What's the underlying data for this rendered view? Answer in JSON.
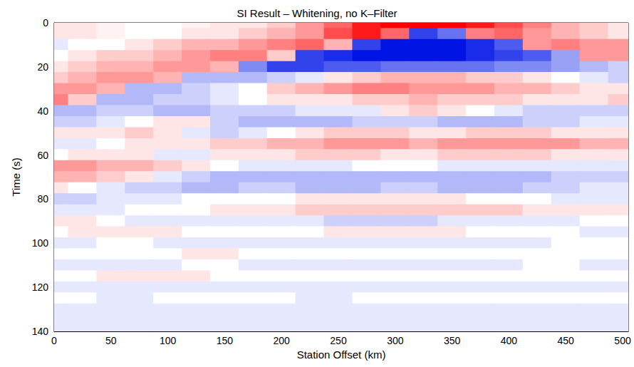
{
  "chart_data": {
    "type": "heatmap",
    "title": "SI Result – Whitening, no K–Filter",
    "xlabel": "Station Offset (km)",
    "ylabel": "Time (s)",
    "xlim": [
      0,
      505
    ],
    "xticks": [
      0,
      50,
      100,
      150,
      200,
      250,
      300,
      350,
      400,
      450,
      500
    ],
    "ylim": [
      0,
      140
    ],
    "yticks": [
      0,
      20,
      40,
      60,
      80,
      100,
      120,
      140
    ],
    "y_inverted": true,
    "zlim": [
      -1,
      1
    ],
    "x": [
      0,
      25,
      50,
      75,
      100,
      125,
      150,
      175,
      200,
      225,
      250,
      275,
      300,
      325,
      350,
      375,
      400,
      425,
      450,
      475,
      500
    ],
    "y": [
      0,
      5,
      10,
      15,
      20,
      25,
      30,
      35,
      40,
      45,
      50,
      55,
      60,
      65,
      70,
      75,
      80,
      85,
      90,
      95,
      100,
      105,
      110,
      115,
      120,
      125,
      130,
      135,
      140
    ],
    "cells": [
      [
        0.1,
        0.1,
        0.05,
        0,
        0,
        0.05,
        0.1,
        0.1,
        0.2,
        0.4,
        0.6,
        0.9,
        1.0,
        1.0,
        1.0,
        0.9,
        0.7,
        0.5,
        0.3,
        0.2,
        0.1
      ],
      [
        0.1,
        0.1,
        0.05,
        0,
        0,
        0.1,
        0.1,
        0.2,
        0.3,
        0.4,
        0.7,
        0.9,
        0.6,
        -0.8,
        -0.6,
        0.5,
        0.6,
        0.4,
        0.3,
        0.2,
        0.1
      ],
      [
        -0.1,
        0,
        0,
        0.1,
        0.2,
        0.3,
        0.3,
        0.4,
        0.5,
        0.6,
        0.3,
        -0.8,
        -1,
        -1,
        -1,
        -0.9,
        -0.7,
        0.4,
        0.5,
        0.4,
        0.4
      ],
      [
        0,
        0.1,
        0.2,
        0.2,
        0.3,
        0.4,
        0.5,
        0.5,
        0.2,
        -0.8,
        -0.9,
        -1,
        -1,
        -1,
        -1,
        -0.9,
        -0.8,
        -0.7,
        -0.4,
        0.4,
        0.4
      ],
      [
        0.1,
        0.2,
        0.3,
        0.3,
        0.4,
        0.4,
        0.3,
        -0.5,
        -0.8,
        -0.8,
        -0.7,
        -0.7,
        -0.6,
        -0.6,
        -0.6,
        -0.6,
        -0.5,
        -0.5,
        -0.4,
        -0.3,
        -0.2
      ],
      [
        0.2,
        0.3,
        0.4,
        0.4,
        0.3,
        -0.3,
        -0.3,
        -0.3,
        -0.2,
        -0.1,
        0.1,
        0.2,
        0.3,
        0.3,
        0.3,
        0.2,
        0.2,
        0.1,
        0,
        -0.1,
        -0.2
      ],
      [
        0.4,
        0.4,
        0.3,
        -0.3,
        -0.3,
        -0.2,
        -0.1,
        0,
        0.2,
        0.3,
        0.4,
        0.5,
        0.5,
        0.4,
        0.4,
        0.4,
        0.3,
        0.3,
        0.2,
        0.1,
        0.1
      ],
      [
        0.5,
        0.2,
        -0.3,
        -0.3,
        -0.2,
        -0.2,
        -0.1,
        0,
        0.1,
        0.1,
        0.1,
        0.2,
        0.2,
        0.3,
        0.2,
        0.2,
        0.2,
        0.1,
        0.1,
        0.1,
        0.2
      ],
      [
        -0.3,
        -0.3,
        -0.2,
        -0.2,
        -0.3,
        -0.3,
        -0.2,
        -0.2,
        -0.2,
        -0.1,
        -0.1,
        -0.1,
        0.1,
        0.2,
        0.1,
        0,
        -0.1,
        -0.2,
        -0.2,
        -0.2,
        -0.2
      ],
      [
        -0.2,
        -0.2,
        -0.1,
        0,
        0.1,
        0.1,
        -0.2,
        -0.3,
        -0.3,
        -0.3,
        -0.3,
        -0.2,
        -0.2,
        -0.2,
        -0.3,
        -0.3,
        -0.3,
        -0.2,
        -0.2,
        -0.1,
        -0.1
      ],
      [
        0.1,
        0.1,
        0.1,
        0.2,
        0.1,
        -0.1,
        -0.2,
        -0.1,
        0,
        0.1,
        0.2,
        0.2,
        0.2,
        0.1,
        0.1,
        0.2,
        0.2,
        0.2,
        0.1,
        0.1,
        0.1
      ],
      [
        -0.1,
        -0.1,
        0,
        0.1,
        0.1,
        0.1,
        0.2,
        0.2,
        0.3,
        0.3,
        0.4,
        0.4,
        0.4,
        0.3,
        0.4,
        0.4,
        0.4,
        0.4,
        0.4,
        0.3,
        0.3
      ],
      [
        0,
        0.1,
        0.1,
        0.1,
        -0.1,
        -0.1,
        0.1,
        0.1,
        0.1,
        0.2,
        0.2,
        0.2,
        0.1,
        0.1,
        0.2,
        0.2,
        0.2,
        0.2,
        0.1,
        0.1,
        0.1
      ],
      [
        0.4,
        0.4,
        0.3,
        0.3,
        0.2,
        0.1,
        0,
        -0.1,
        -0.1,
        -0.1,
        -0.1,
        0,
        0,
        0,
        -0.1,
        -0.1,
        -0.1,
        -0.1,
        -0.1,
        -0.1,
        -0.1
      ],
      [
        0.3,
        0.3,
        0.2,
        0.1,
        -0.1,
        -0.2,
        -0.3,
        -0.3,
        -0.3,
        -0.3,
        -0.3,
        -0.3,
        -0.3,
        -0.3,
        -0.3,
        -0.3,
        -0.3,
        -0.3,
        -0.2,
        -0.2,
        -0.2
      ],
      [
        0.1,
        0,
        -0.1,
        -0.2,
        -0.2,
        -0.3,
        -0.3,
        -0.2,
        -0.2,
        -0.3,
        -0.3,
        -0.3,
        -0.2,
        -0.2,
        -0.3,
        -0.3,
        -0.3,
        -0.2,
        -0.2,
        -0.1,
        -0.1
      ],
      [
        -0.2,
        -0.2,
        -0.1,
        -0.1,
        -0.1,
        0,
        0,
        0,
        0,
        0.1,
        0.1,
        0.1,
        0.1,
        0.1,
        0.1,
        0,
        0,
        0,
        -0.1,
        -0.1,
        -0.1
      ],
      [
        -0.1,
        -0.1,
        -0.1,
        0,
        0,
        0,
        0.1,
        0.1,
        0.1,
        0.2,
        0.2,
        0.2,
        0.2,
        0.2,
        0.2,
        0.2,
        0.2,
        0.1,
        0.1,
        0.1,
        0.1
      ],
      [
        0.1,
        0.1,
        0,
        -0.1,
        -0.1,
        -0.1,
        -0.1,
        -0.1,
        -0.1,
        -0.1,
        -0.2,
        -0.2,
        -0.2,
        -0.2,
        -0.1,
        -0.1,
        -0.1,
        -0.1,
        -0.1,
        0,
        0
      ],
      [
        0,
        0.1,
        0.1,
        0.1,
        0.1,
        0,
        0,
        0,
        0,
        0,
        0.1,
        0.1,
        0.1,
        0.1,
        0.1,
        0,
        0,
        0,
        0,
        -0.1,
        -0.1
      ],
      [
        -0.1,
        -0.1,
        0,
        0,
        -0.1,
        -0.1,
        -0.1,
        -0.1,
        -0.1,
        -0.1,
        -0.1,
        -0.1,
        -0.1,
        -0.1,
        -0.1,
        -0.1,
        -0.1,
        -0.1,
        0,
        0,
        0
      ],
      [
        0,
        0,
        0,
        0,
        0,
        0.1,
        0.1,
        0,
        0,
        0,
        0,
        0,
        0,
        0,
        0,
        0,
        0,
        0,
        0,
        0,
        0
      ],
      [
        -0.1,
        -0.1,
        -0.1,
        -0.1,
        -0.1,
        0,
        0,
        -0.1,
        -0.1,
        -0.1,
        -0.1,
        -0.1,
        -0.1,
        -0.1,
        -0.1,
        -0.1,
        -0.1,
        0,
        0,
        -0.1,
        -0.1
      ],
      [
        0,
        0,
        0.1,
        0.1,
        0.1,
        0.1,
        0,
        0,
        0,
        0,
        0,
        0,
        0,
        0,
        0,
        0,
        0,
        0,
        0,
        0,
        0
      ],
      [
        -0.1,
        -0.1,
        -0.1,
        -0.1,
        -0.1,
        -0.1,
        -0.1,
        -0.1,
        -0.1,
        -0.1,
        -0.1,
        -0.1,
        -0.1,
        -0.1,
        -0.1,
        -0.1,
        -0.1,
        -0.1,
        -0.1,
        -0.1,
        -0.1
      ],
      [
        0,
        0,
        -0.1,
        -0.1,
        0,
        0,
        0,
        0,
        0,
        -0.1,
        -0.1,
        0,
        0,
        0,
        0,
        0,
        0,
        0,
        0,
        0,
        0
      ],
      [
        -0.1,
        -0.1,
        -0.1,
        -0.1,
        -0.1,
        -0.1,
        -0.1,
        -0.1,
        -0.1,
        -0.1,
        -0.1,
        -0.1,
        -0.1,
        -0.1,
        -0.1,
        -0.1,
        -0.1,
        -0.1,
        -0.1,
        -0.1,
        -0.1
      ],
      [
        -0.1,
        -0.1,
        -0.1,
        -0.1,
        -0.1,
        -0.1,
        -0.1,
        -0.1,
        -0.1,
        -0.1,
        -0.1,
        -0.1,
        -0.1,
        -0.1,
        -0.1,
        -0.1,
        -0.1,
        -0.1,
        -0.1,
        -0.1,
        -0.1
      ],
      [
        -0.1,
        -0.1,
        -0.1,
        -0.1,
        -0.1,
        -0.1,
        -0.1,
        -0.1,
        -0.1,
        -0.1,
        -0.1,
        -0.1,
        -0.1,
        -0.1,
        -0.1,
        -0.1,
        -0.1,
        -0.1,
        -0.1,
        -0.1,
        -0.1
      ]
    ]
  }
}
